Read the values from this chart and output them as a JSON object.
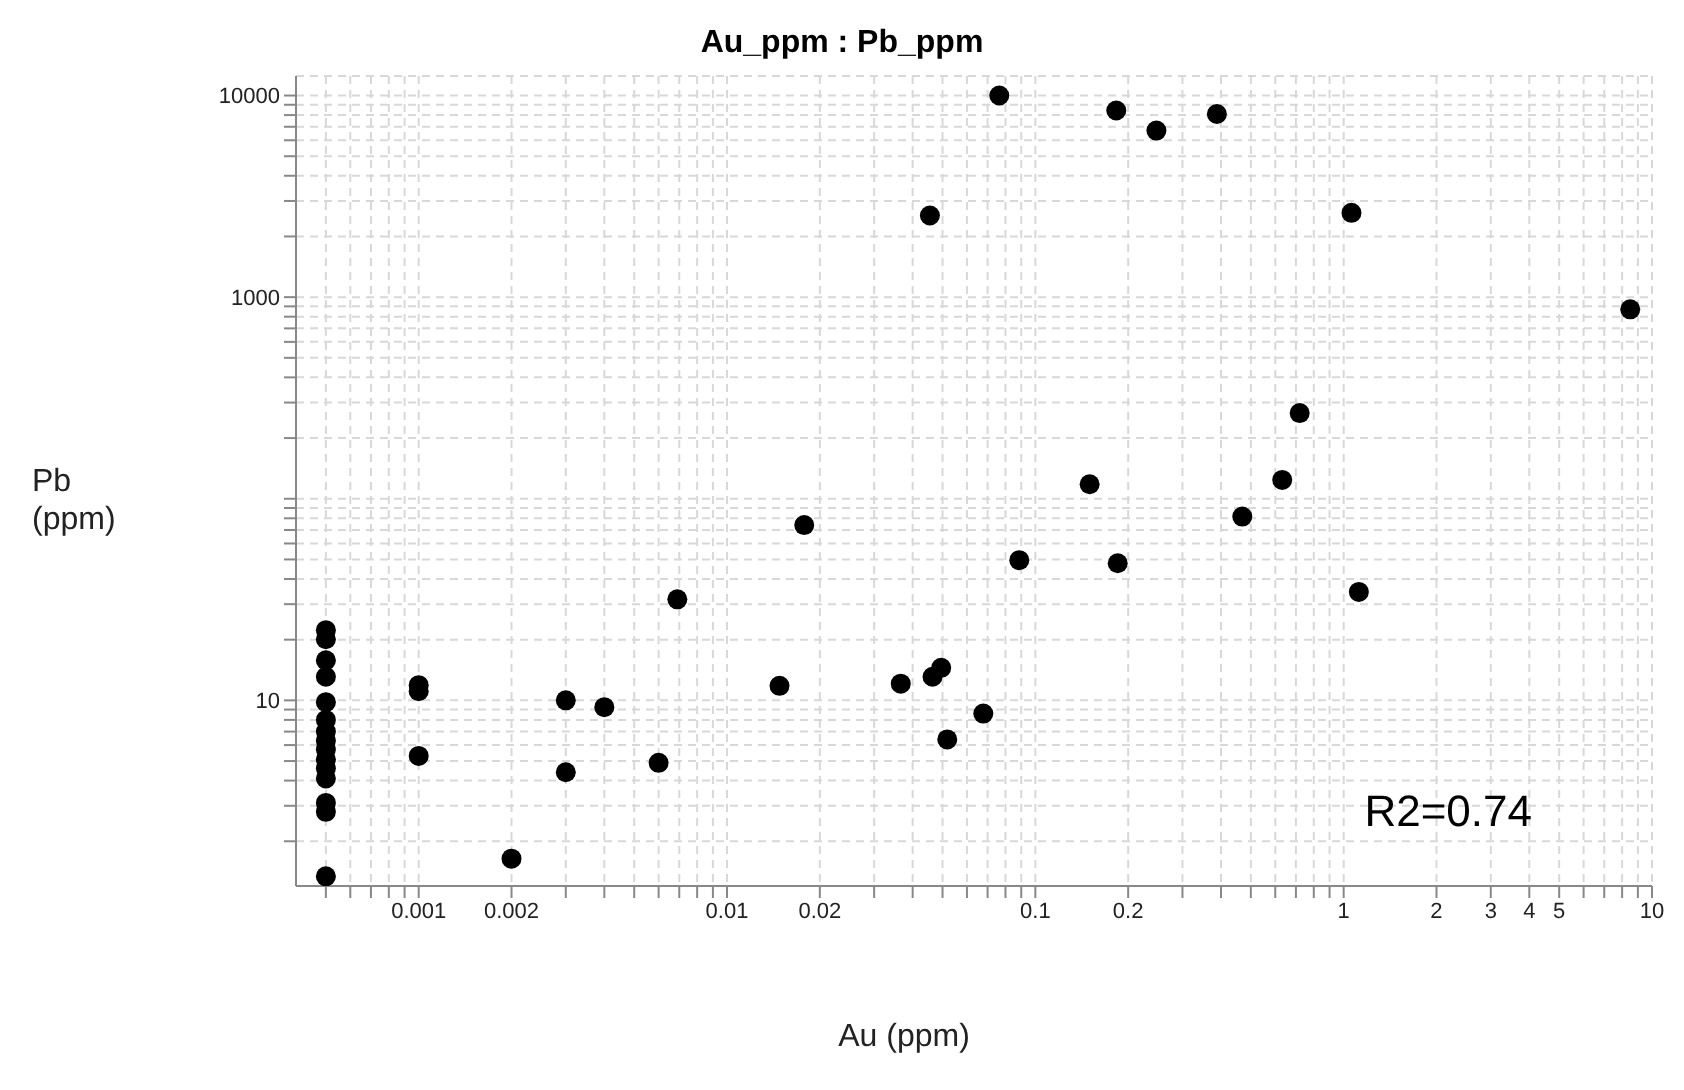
{
  "chart_data": {
    "type": "scatter",
    "title": "Au_ppm : Pb_ppm",
    "xlabel": "Au (ppm)",
    "ylabel": "Pb (ppm)",
    "annotations": [
      "R2=0.74"
    ],
    "log": "xy",
    "grid": true,
    "marker": "circle",
    "xlim": [
      0.0004,
      10
    ],
    "ylim": [
      1.2,
      12500
    ],
    "xticks": [
      {
        "value": 0.0005,
        "label": null
      },
      {
        "value": 0.0006,
        "label": null
      },
      {
        "value": 0.0007,
        "label": null
      },
      {
        "value": 0.0008,
        "label": null
      },
      {
        "value": 0.0009,
        "label": null
      },
      0.001,
      0.002,
      {
        "value": 0.003,
        "label": null
      },
      {
        "value": 0.004,
        "label": null
      },
      {
        "value": 0.005,
        "label": null
      },
      {
        "value": 0.006,
        "label": null
      },
      {
        "value": 0.007,
        "label": null
      },
      {
        "value": 0.008,
        "label": null
      },
      {
        "value": 0.009,
        "label": null
      },
      0.01,
      0.02,
      {
        "value": 0.03,
        "label": null
      },
      {
        "value": 0.04,
        "label": null
      },
      {
        "value": 0.05,
        "label": null
      },
      {
        "value": 0.06,
        "label": null
      },
      {
        "value": 0.07,
        "label": null
      },
      {
        "value": 0.08,
        "label": null
      },
      {
        "value": 0.09,
        "label": null
      },
      0.1,
      0.2,
      {
        "value": 0.3,
        "label": null
      },
      {
        "value": 0.4,
        "label": null
      },
      {
        "value": 0.5,
        "label": null
      },
      {
        "value": 0.6,
        "label": null
      },
      {
        "value": 0.7,
        "label": null
      },
      {
        "value": 0.8,
        "label": null
      },
      {
        "value": 0.9,
        "label": null
      },
      1,
      2,
      3,
      4,
      5,
      {
        "value": 6,
        "label": null
      },
      {
        "value": 7,
        "label": null
      },
      {
        "value": 8,
        "label": null
      },
      {
        "value": 9,
        "label": null
      },
      10
    ],
    "yticks": [
      {
        "value": 2,
        "label": null
      },
      {
        "value": 3,
        "label": null
      },
      {
        "value": 4,
        "label": null
      },
      {
        "value": 5,
        "label": null
      },
      {
        "value": 6,
        "label": null
      },
      {
        "value": 7,
        "label": null
      },
      {
        "value": 8,
        "label": null
      },
      {
        "value": 9,
        "label": null
      },
      10,
      {
        "value": 20,
        "label": null
      },
      {
        "value": 30,
        "label": null
      },
      {
        "value": 40,
        "label": null
      },
      {
        "value": 50,
        "label": null
      },
      {
        "value": 60,
        "label": null
      },
      {
        "value": 70,
        "label": null
      },
      {
        "value": 80,
        "label": null
      },
      {
        "value": 90,
        "label": null
      },
      {
        "value": 100,
        "label": null
      },
      {
        "value": 200,
        "label": null
      },
      {
        "value": 300,
        "label": null
      },
      {
        "value": 400,
        "label": null
      },
      {
        "value": 500,
        "label": null
      },
      {
        "value": 600,
        "label": null
      },
      {
        "value": 700,
        "label": null
      },
      {
        "value": 800,
        "label": null
      },
      {
        "value": 900,
        "label": null
      },
      1000,
      {
        "value": 2000,
        "label": null
      },
      {
        "value": 3000,
        "label": null
      },
      {
        "value": 4000,
        "label": null
      },
      {
        "value": 5000,
        "label": null
      },
      {
        "value": 6000,
        "label": null
      },
      {
        "value": 7000,
        "label": null
      },
      {
        "value": 8000,
        "label": null
      },
      {
        "value": 9000,
        "label": null
      },
      10000
    ],
    "series": [
      {
        "color": "#000000",
        "x": [
          0.0005,
          0.0005,
          0.0005,
          0.0005,
          0.0005,
          0.0005,
          0.0005,
          0.0005,
          0.0005,
          0.0005,
          0.0005,
          0.0005,
          0.0005,
          0.0005,
          0.0005,
          0.001,
          0.001,
          0.001,
          0.002,
          0.003,
          0.003,
          0.004,
          0.006,
          0.0069,
          0.0148,
          0.0178,
          0.0366,
          0.0464,
          0.0495,
          0.0518,
          0.0678,
          0.0887,
          0.185,
          0.469,
          1.12,
          0.0764,
          0.183,
          0.247,
          0.388,
          0.0455,
          1.06,
          8.5,
          0.72,
          0.15,
          0.632
        ],
        "values": [
          22.3,
          20.1,
          15.8,
          13.1,
          9.8,
          8.0,
          7.0,
          6.3,
          5.7,
          5.1,
          4.6,
          4.1,
          3.1,
          2.8,
          1.34,
          11.9,
          11.1,
          5.3,
          1.64,
          10,
          4.4,
          9.25,
          4.9,
          31.7,
          11.8,
          74,
          12.1,
          13.1,
          14.5,
          6.4,
          8.6,
          49.6,
          47.9,
          81.6,
          34.5,
          10000,
          8430,
          6700,
          8100,
          2540,
          2620,
          870,
          266,
          118,
          124
        ]
      }
    ]
  }
}
